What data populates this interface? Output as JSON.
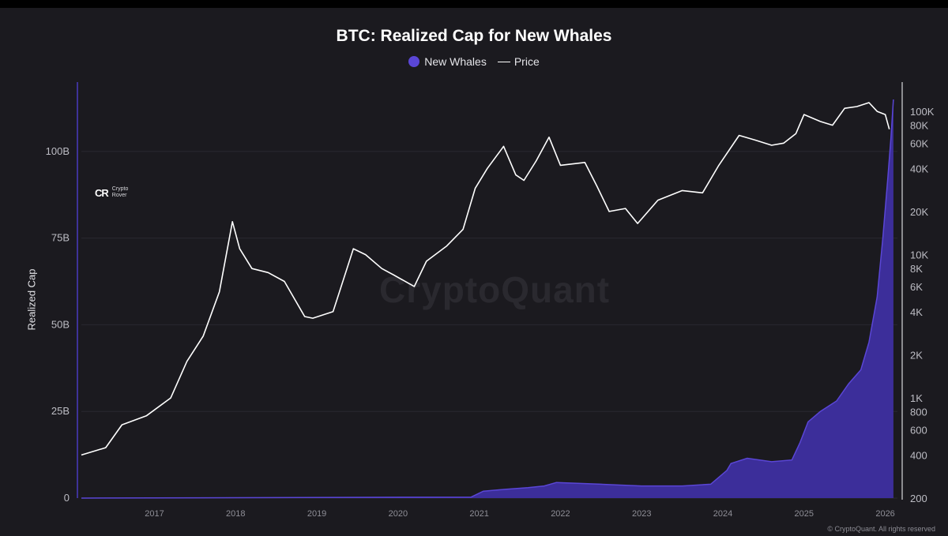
{
  "header": {
    "title": "BTC: Realized Cap for New Whales"
  },
  "legend": {
    "whales_label": "New Whales",
    "price_label": "Price"
  },
  "branding": {
    "logo_mark": "CR",
    "logo_line1": "Crypto",
    "logo_line2": "Rover",
    "watermark": "CryptoQuant",
    "copyright": "© CryptoQuant. All rights reserved"
  },
  "colors": {
    "background": "#1b1a1f",
    "whales_fill": "#3c2e9a",
    "whales_line": "#5a46d6",
    "price_line": "#ffffff",
    "axis_accent": "#4a3bc0"
  },
  "chart_data": {
    "type": "area",
    "title": "BTC: Realized Cap for New Whales",
    "ylabel": "Realized Cap",
    "y_ticks": [
      "0",
      "25B",
      "50B",
      "75B",
      "100B"
    ],
    "y_tick_values": [
      0,
      25,
      50,
      75,
      100
    ],
    "ylim": [
      0,
      120
    ],
    "y_right_scale": "log",
    "y_right_ticks": [
      "200",
      "400",
      "600",
      "800",
      "1K",
      "2K",
      "4K",
      "6K",
      "8K",
      "10K",
      "20K",
      "40K",
      "60K",
      "80K",
      "100K"
    ],
    "y_right_tick_values": [
      200,
      400,
      600,
      800,
      1000,
      2000,
      4000,
      6000,
      8000,
      10000,
      20000,
      40000,
      60000,
      80000,
      100000
    ],
    "y_right_lim": [
      200,
      160000
    ],
    "x_ticks": [
      "2017",
      "2018",
      "2019",
      "2020",
      "2021",
      "2022",
      "2023",
      "2024",
      "2025",
      "2026"
    ],
    "x_tick_values": [
      2017,
      2018,
      2019,
      2020,
      2021,
      2022,
      2023,
      2024,
      2025,
      2026
    ],
    "xlim": [
      2016.1,
      2026.15
    ],
    "grid": true,
    "legend_position": "top-center",
    "series": [
      {
        "name": "New Whales",
        "axis": "left",
        "style": "area",
        "x": [
          2016.1,
          2020.9,
          2021.05,
          2021.3,
          2021.6,
          2021.8,
          2021.95,
          2022.5,
          2023.0,
          2023.5,
          2023.85,
          2024.05,
          2024.1,
          2024.3,
          2024.6,
          2024.85,
          2024.95,
          2025.05,
          2025.2,
          2025.4,
          2025.55,
          2025.7,
          2025.8,
          2025.9,
          2025.97,
          2026.03,
          2026.07,
          2026.1
        ],
        "values": [
          0,
          0.3,
          2,
          2.5,
          3,
          3.5,
          4.5,
          4,
          3.5,
          3.5,
          4,
          8,
          10,
          11.5,
          10.5,
          11,
          16,
          22,
          25,
          28,
          33,
          37,
          45,
          58,
          75,
          92,
          104,
          115
        ]
      },
      {
        "name": "Price",
        "axis": "right",
        "style": "line",
        "x": [
          2016.1,
          2016.4,
          2016.6,
          2016.9,
          2017.2,
          2017.4,
          2017.6,
          2017.8,
          2017.96,
          2018.05,
          2018.2,
          2018.4,
          2018.6,
          2018.85,
          2018.95,
          2019.2,
          2019.45,
          2019.6,
          2019.8,
          2019.95,
          2020.2,
          2020.35,
          2020.6,
          2020.8,
          2020.95,
          2021.1,
          2021.3,
          2021.45,
          2021.55,
          2021.7,
          2021.86,
          2022.0,
          2022.3,
          2022.45,
          2022.6,
          2022.8,
          2022.95,
          2023.2,
          2023.5,
          2023.75,
          2023.95,
          2024.2,
          2024.4,
          2024.6,
          2024.75,
          2024.9,
          2025.0,
          2025.2,
          2025.35,
          2025.5,
          2025.65,
          2025.8,
          2025.9,
          2026.0,
          2026.05
        ],
        "values": [
          400,
          450,
          650,
          750,
          1000,
          1800,
          2700,
          5500,
          17000,
          11000,
          8000,
          7500,
          6500,
          3700,
          3600,
          4000,
          11000,
          10000,
          8000,
          7200,
          6000,
          9000,
          11500,
          15000,
          29000,
          40000,
          57000,
          36000,
          33000,
          45000,
          66000,
          42000,
          44000,
          30000,
          20000,
          21000,
          16500,
          24000,
          28000,
          27000,
          42000,
          68000,
          63000,
          58000,
          60000,
          70000,
          95000,
          85000,
          80000,
          105000,
          108000,
          115000,
          100000,
          95000,
          75000
        ]
      }
    ]
  }
}
